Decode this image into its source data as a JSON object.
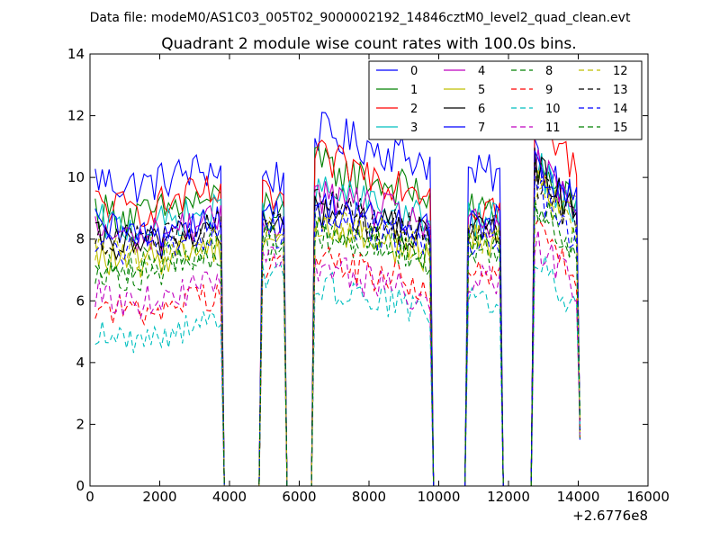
{
  "figure": {
    "suptitle": "Data file: modeM0/AS1C03_005T02_9000002192_14846cztM0_level2_quad_clean.evt"
  },
  "chart_data": {
    "type": "line",
    "title": "Quadrant 2 module wise count rates with 100.0s bins.",
    "xlabel": "",
    "ylabel": "",
    "xlim": [
      0,
      16000
    ],
    "ylim": [
      0,
      14
    ],
    "x_ticks": [
      0,
      2000,
      4000,
      6000,
      8000,
      10000,
      12000,
      14000,
      16000
    ],
    "y_ticks": [
      0,
      2,
      4,
      6,
      8,
      10,
      12,
      14
    ],
    "x_offset_label": "+2.6776e8",
    "legend_location": "upper-right",
    "legend_columns": 4,
    "bin_seconds": 100,
    "segments": [
      {
        "start": 150,
        "end": 3750
      },
      {
        "start": 4950,
        "end": 5550
      },
      {
        "start": 6450,
        "end": 9750
      },
      {
        "start": 10850,
        "end": 11750
      },
      {
        "start": 12750,
        "end": 14050
      }
    ],
    "gaps": [
      [
        3750,
        4950
      ],
      [
        5550,
        6450
      ],
      [
        9750,
        10850
      ],
      [
        11750,
        12750
      ]
    ],
    "series": [
      {
        "name": "0",
        "color": "#0000ff",
        "style": "solid",
        "levels": [
          10.0,
          10.0,
          11.5,
          10.1,
          10.8
        ]
      },
      {
        "name": "1",
        "color": "#008000",
        "style": "solid",
        "levels": [
          9.0,
          9.1,
          10.4,
          8.9,
          10.4
        ]
      },
      {
        "name": "2",
        "color": "#ff0000",
        "style": "solid",
        "levels": [
          9.2,
          9.3,
          10.6,
          9.1,
          11.8
        ]
      },
      {
        "name": "3",
        "color": "#00bfbf",
        "style": "solid",
        "levels": [
          8.6,
          8.9,
          9.6,
          8.6,
          10.4
        ]
      },
      {
        "name": "4",
        "color": "#bf00bf",
        "style": "solid",
        "levels": [
          8.3,
          8.6,
          9.5,
          8.4,
          10.4
        ]
      },
      {
        "name": "5",
        "color": "#bfbf00",
        "style": "solid",
        "levels": [
          7.5,
          8.1,
          8.5,
          8.0,
          10.3
        ]
      },
      {
        "name": "6",
        "color": "#000000",
        "style": "solid",
        "levels": [
          8.0,
          8.4,
          9.0,
          8.2,
          10.4
        ]
      },
      {
        "name": "7",
        "color": "#0000ff",
        "style": "solid",
        "levels": [
          8.4,
          8.7,
          9.2,
          8.5,
          10.5
        ]
      },
      {
        "name": "8",
        "color": "#008000",
        "style": "dashed",
        "levels": [
          7.1,
          7.8,
          8.3,
          7.9,
          9.2
        ]
      },
      {
        "name": "9",
        "color": "#ff0000",
        "style": "dashed",
        "levels": [
          5.9,
          7.3,
          7.4,
          6.8,
          8.4
        ]
      },
      {
        "name": "10",
        "color": "#00bfbf",
        "style": "dashed",
        "levels": [
          5.0,
          6.8,
          6.6,
          6.1,
          7.3
        ]
      },
      {
        "name": "11",
        "color": "#bf00bf",
        "style": "dashed",
        "levels": [
          6.2,
          7.5,
          7.1,
          6.7,
          7.9
        ]
      },
      {
        "name": "12",
        "color": "#bfbf00",
        "style": "dashed",
        "levels": [
          7.7,
          8.2,
          8.7,
          8.0,
          9.7
        ]
      },
      {
        "name": "13",
        "color": "#000000",
        "style": "dashed",
        "levels": [
          8.2,
          8.5,
          9.1,
          8.2,
          10.0
        ]
      },
      {
        "name": "14",
        "color": "#0000ff",
        "style": "dashed",
        "levels": [
          7.9,
          8.3,
          8.8,
          8.0,
          9.6
        ]
      },
      {
        "name": "15",
        "color": "#008000",
        "style": "dashed",
        "levels": [
          7.4,
          8.0,
          8.4,
          7.7,
          9.1
        ]
      }
    ]
  }
}
